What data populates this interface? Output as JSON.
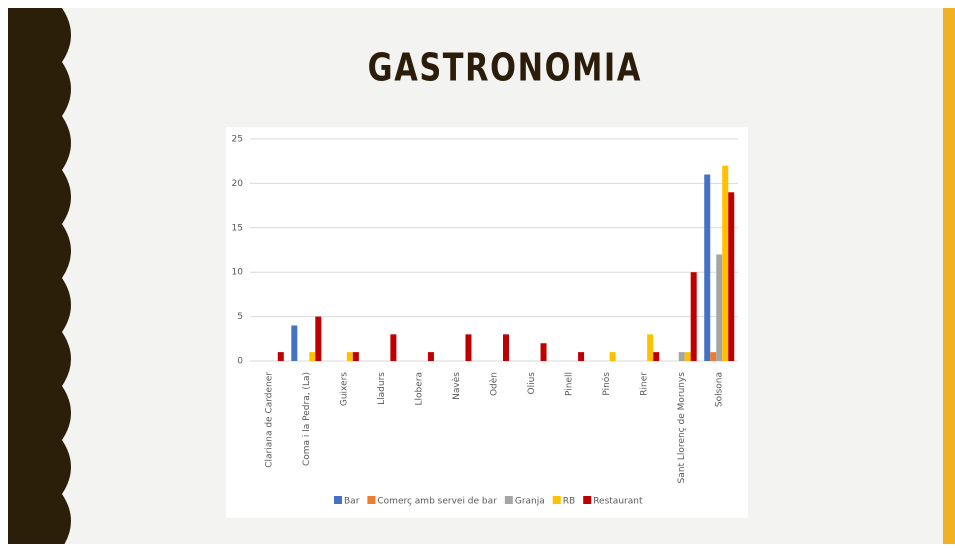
{
  "chart_data": {
    "type": "bar",
    "title": "GASTRONOMIA",
    "categories": [
      "Clariana de Cardener",
      "Coma i la Pedra, (La)",
      "Guixers",
      "Lladurs",
      "Llobera",
      "Navès",
      "Odèn",
      "Olius",
      "Pinell",
      "Pinós",
      "Riner",
      "Sant Llorenç de Morunys",
      "Solsona"
    ],
    "series": [
      {
        "name": "Bar",
        "color": "#4472c4",
        "values": [
          0,
          4,
          0,
          0,
          0,
          0,
          0,
          0,
          0,
          0,
          0,
          0,
          21
        ]
      },
      {
        "name": "Comerç amb servei de bar",
        "color": "#ed7d31",
        "values": [
          0,
          0,
          0,
          0,
          0,
          0,
          0,
          0,
          0,
          0,
          0,
          0,
          1
        ]
      },
      {
        "name": "Granja",
        "color": "#a5a5a5",
        "values": [
          0,
          0,
          0,
          0,
          0,
          0,
          0,
          0,
          0,
          0,
          0,
          1,
          12
        ]
      },
      {
        "name": "RB",
        "color": "#ffc000",
        "values": [
          0,
          1,
          1,
          0,
          0,
          0,
          0,
          0,
          0,
          1,
          3,
          1,
          22
        ]
      },
      {
        "name": "Restaurant",
        "color": "#c00000",
        "values": [
          1,
          5,
          1,
          3,
          1,
          3,
          3,
          2,
          1,
          0,
          1,
          10,
          19
        ]
      }
    ],
    "ylim": [
      0,
      25
    ],
    "yticks": [
      0,
      5,
      10,
      15,
      20,
      25
    ],
    "grid": true,
    "legend": "bottom"
  }
}
